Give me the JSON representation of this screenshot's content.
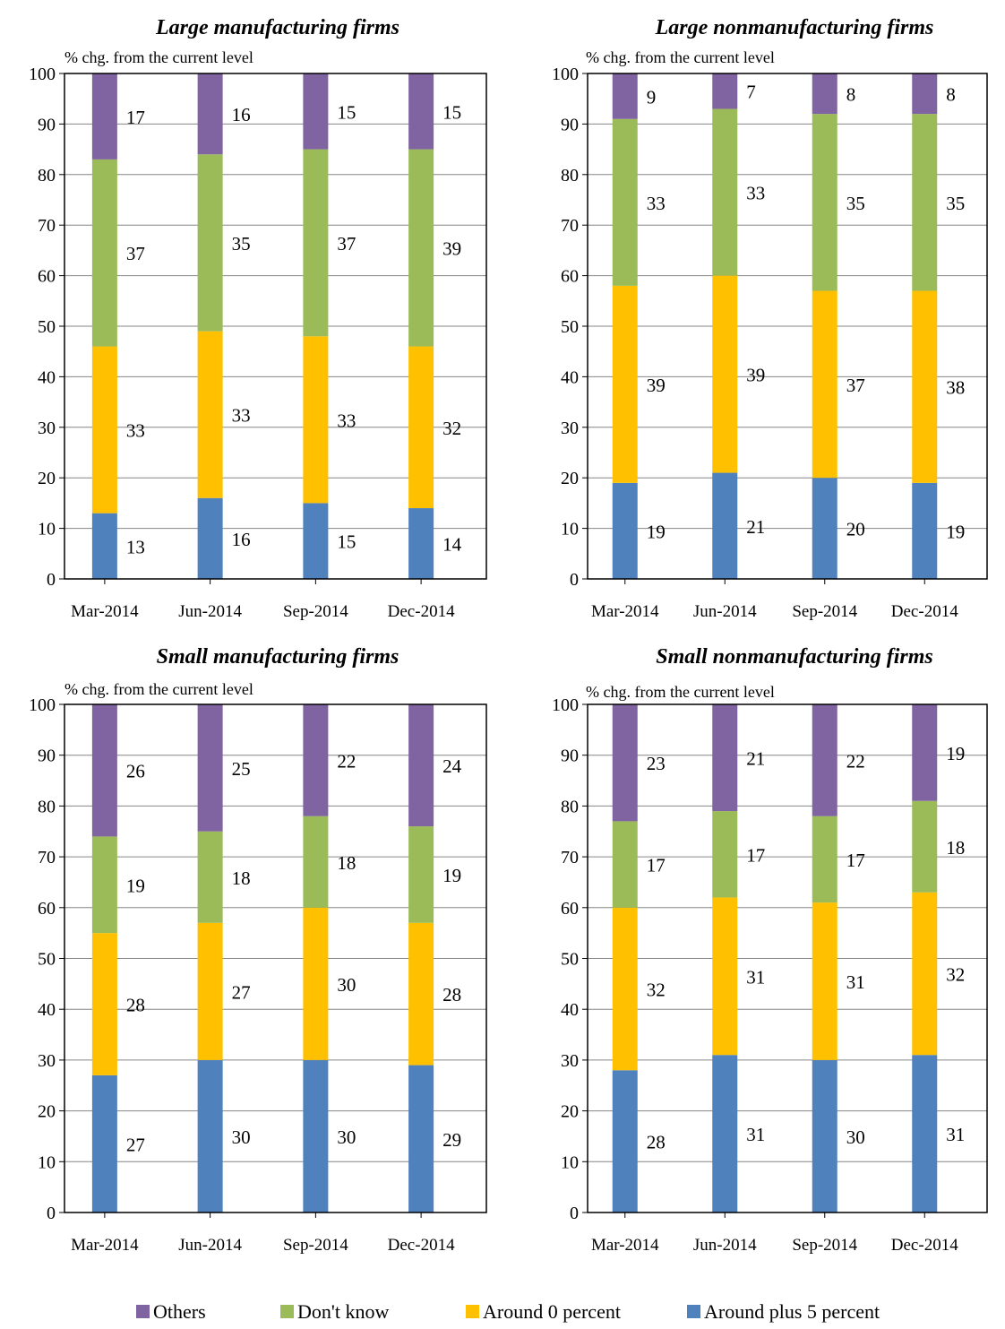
{
  "chart_data": [
    {
      "type": "bar",
      "stacked": true,
      "title": "Large manufacturing firms",
      "ylabel": "% chg. from the current level",
      "categories": [
        "Mar-2014",
        "Jun-2014",
        "Sep-2014",
        "Dec-2014"
      ],
      "ylim": [
        0,
        100
      ],
      "yticks": [
        0,
        10,
        20,
        30,
        40,
        50,
        60,
        70,
        80,
        90,
        100
      ],
      "grid": true,
      "series": [
        {
          "name": "Around plus 5 percent",
          "values": [
            13,
            16,
            15,
            14
          ]
        },
        {
          "name": "Around 0 percent",
          "values": [
            33,
            33,
            33,
            32
          ]
        },
        {
          "name": "Don't know",
          "values": [
            37,
            35,
            37,
            39
          ]
        },
        {
          "name": "Others",
          "values": [
            17,
            16,
            15,
            15
          ]
        }
      ]
    },
    {
      "type": "bar",
      "stacked": true,
      "title": "Large nonmanufacturing firms",
      "ylabel": "% chg. from the current level",
      "categories": [
        "Mar-2014",
        "Jun-2014",
        "Sep-2014",
        "Dec-2014"
      ],
      "ylim": [
        0,
        100
      ],
      "yticks": [
        0,
        10,
        20,
        30,
        40,
        50,
        60,
        70,
        80,
        90,
        100
      ],
      "grid": true,
      "series": [
        {
          "name": "Around plus 5 percent",
          "values": [
            19,
            21,
            20,
            19
          ]
        },
        {
          "name": "Around 0 percent",
          "values": [
            39,
            39,
            37,
            38
          ]
        },
        {
          "name": "Don't know",
          "values": [
            33,
            33,
            35,
            35
          ]
        },
        {
          "name": "Others",
          "values": [
            9,
            7,
            8,
            8
          ]
        }
      ]
    },
    {
      "type": "bar",
      "stacked": true,
      "title": "Small manufacturing firms",
      "ylabel": "% chg. from the current level",
      "categories": [
        "Mar-2014",
        "Jun-2014",
        "Sep-2014",
        "Dec-2014"
      ],
      "ylim": [
        0,
        100
      ],
      "yticks": [
        0,
        10,
        20,
        30,
        40,
        50,
        60,
        70,
        80,
        90,
        100
      ],
      "grid": true,
      "series": [
        {
          "name": "Around plus 5 percent",
          "values": [
            27,
            30,
            30,
            29
          ]
        },
        {
          "name": "Around 0 percent",
          "values": [
            28,
            27,
            30,
            28
          ]
        },
        {
          "name": "Don't know",
          "values": [
            19,
            18,
            18,
            19
          ]
        },
        {
          "name": "Others",
          "values": [
            26,
            25,
            22,
            24
          ]
        }
      ]
    },
    {
      "type": "bar",
      "stacked": true,
      "title": "Small nonmanufacturing firms",
      "ylabel": "% chg. from the current level",
      "categories": [
        "Mar-2014",
        "Jun-2014",
        "Sep-2014",
        "Dec-2014"
      ],
      "ylim": [
        0,
        100
      ],
      "yticks": [
        0,
        10,
        20,
        30,
        40,
        50,
        60,
        70,
        80,
        90,
        100
      ],
      "grid": true,
      "series": [
        {
          "name": "Around plus 5 percent",
          "values": [
            28,
            31,
            30,
            31
          ]
        },
        {
          "name": "Around 0 percent",
          "values": [
            32,
            31,
            31,
            32
          ]
        },
        {
          "name": "Don't know",
          "values": [
            17,
            17,
            17,
            18
          ]
        },
        {
          "name": "Others",
          "values": [
            23,
            21,
            22,
            19
          ]
        }
      ]
    }
  ],
  "colors": {
    "Others": "#8064a2",
    "Don't know": "#9bbb59",
    "Around 0 percent": "#ffc000",
    "Around plus 5 percent": "#4f81bd"
  },
  "legend": {
    "position": "bottom",
    "items": [
      "Others",
      "Don't know",
      "Around 0 percent",
      "Around plus 5 percent"
    ]
  }
}
